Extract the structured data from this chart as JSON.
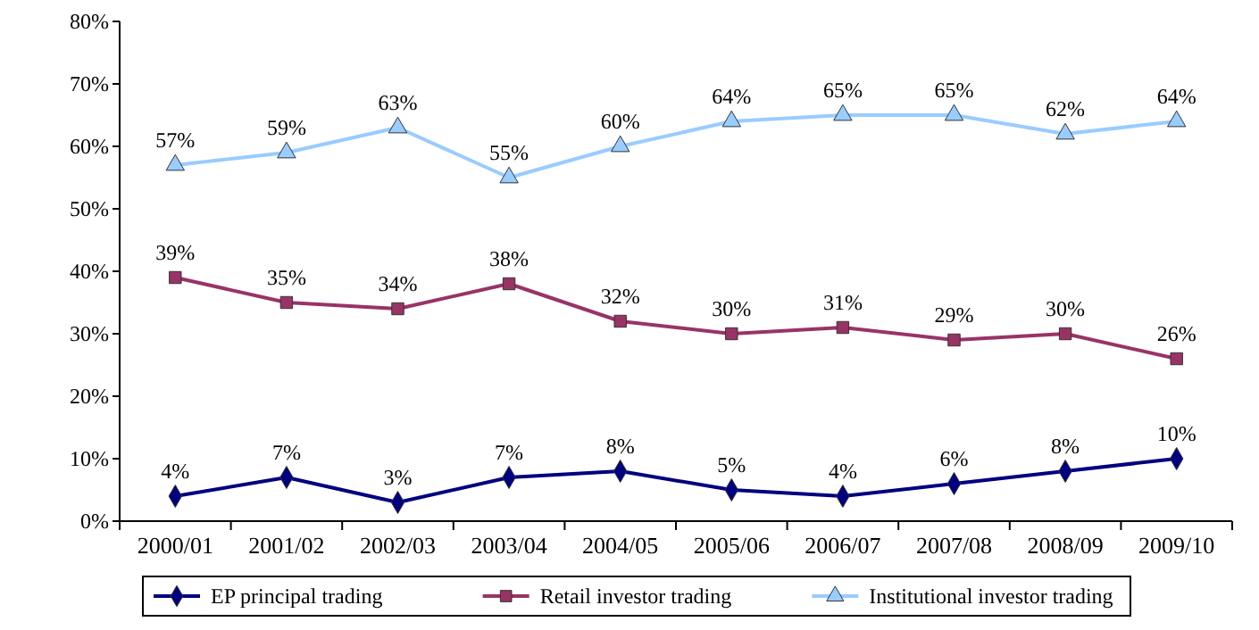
{
  "chart_data": {
    "type": "line",
    "categories": [
      "2000/01",
      "2001/02",
      "2002/03",
      "2003/04",
      "2004/05",
      "2005/06",
      "2006/07",
      "2007/08",
      "2008/09",
      "2009/10"
    ],
    "series": [
      {
        "name": "EP principal trading",
        "color": "#000080",
        "marker": "diamond",
        "values": [
          4,
          7,
          3,
          7,
          8,
          5,
          4,
          6,
          8,
          10
        ],
        "value_labels": [
          "4%",
          "7%",
          "3%",
          "7%",
          "8%",
          "5%",
          "4%",
          "6%",
          "8%",
          "10%"
        ]
      },
      {
        "name": "Retail investor trading",
        "color": "#993366",
        "marker": "square",
        "values": [
          39,
          35,
          34,
          38,
          32,
          30,
          31,
          29,
          30,
          26
        ],
        "value_labels": [
          "39%",
          "35%",
          "34%",
          "38%",
          "32%",
          "30%",
          "31%",
          "29%",
          "30%",
          "26%"
        ]
      },
      {
        "name": "Institutional investor trading",
        "color": "#99ccff",
        "marker": "triangle",
        "values": [
          57,
          59,
          63,
          55,
          60,
          64,
          65,
          65,
          62,
          64
        ],
        "value_labels": [
          "57%",
          "59%",
          "63%",
          "55%",
          "60%",
          "64%",
          "65%",
          "65%",
          "62%",
          "64%"
        ]
      }
    ],
    "ylim": [
      0,
      80
    ],
    "yticks": [
      {
        "value": 0,
        "label": "0%"
      },
      {
        "value": 10,
        "label": "10%"
      },
      {
        "value": 20,
        "label": "20%"
      },
      {
        "value": 30,
        "label": "30%"
      },
      {
        "value": 40,
        "label": "40%"
      },
      {
        "value": 50,
        "label": "50%"
      },
      {
        "value": 60,
        "label": "60%"
      },
      {
        "value": 70,
        "label": "70%"
      },
      {
        "value": 80,
        "label": "80%"
      }
    ],
    "legend": "bottom",
    "grid": false
  }
}
